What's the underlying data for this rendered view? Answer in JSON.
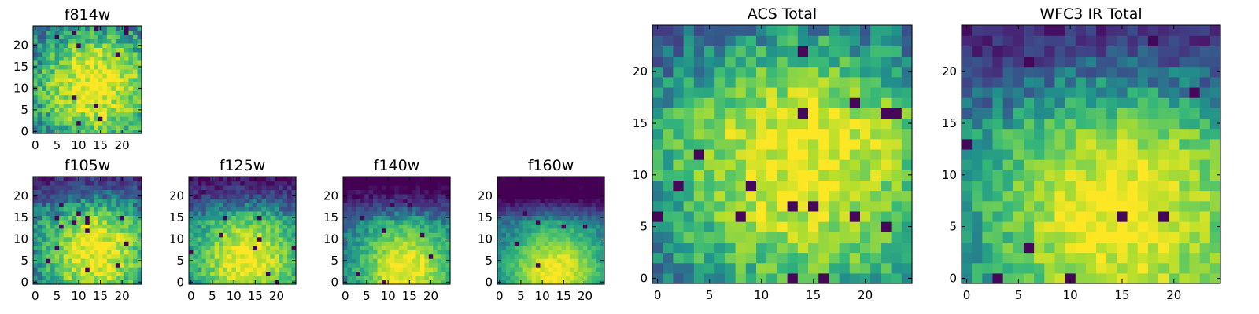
{
  "chart_data": [
    {
      "type": "heatmap",
      "title": "f814w",
      "grid": [
        25,
        25
      ],
      "xlim": [
        0,
        24
      ],
      "ylim": [
        0,
        24
      ],
      "xticks": [
        0,
        5,
        10,
        15,
        20
      ],
      "yticks": [
        0,
        5,
        10,
        15,
        20
      ],
      "colormap": "viridis",
      "center": [
        14,
        11
      ],
      "spread": 10,
      "seed": 11,
      "noise": 0.35,
      "topDark": 0.05
    },
    {
      "type": "heatmap",
      "title": "f105w",
      "grid": [
        25,
        25
      ],
      "xlim": [
        0,
        24
      ],
      "ylim": [
        0,
        24
      ],
      "xticks": [
        0,
        5,
        10,
        15,
        20
      ],
      "yticks": [
        0,
        5,
        10,
        15,
        20
      ],
      "colormap": "viridis",
      "center": [
        14,
        7
      ],
      "spread": 9,
      "seed": 23,
      "noise": 0.3,
      "topDark": 0.25
    },
    {
      "type": "heatmap",
      "title": "f125w",
      "grid": [
        25,
        25
      ],
      "xlim": [
        0,
        24
      ],
      "ylim": [
        0,
        24
      ],
      "xticks": [
        0,
        5,
        10,
        15,
        20
      ],
      "yticks": [
        0,
        5,
        10,
        15,
        20
      ],
      "colormap": "viridis",
      "center": [
        13,
        5
      ],
      "spread": 9,
      "seed": 37,
      "noise": 0.25,
      "topDark": 0.35
    },
    {
      "type": "heatmap",
      "title": "f140w",
      "grid": [
        25,
        25
      ],
      "xlim": [
        0,
        24
      ],
      "ylim": [
        0,
        24
      ],
      "xticks": [
        0,
        5,
        10,
        15,
        20
      ],
      "yticks": [
        0,
        5,
        10,
        15,
        20
      ],
      "colormap": "viridis",
      "center": [
        14,
        3
      ],
      "spread": 8,
      "seed": 41,
      "noise": 0.2,
      "topDark": 0.5
    },
    {
      "type": "heatmap",
      "title": "f160w",
      "grid": [
        25,
        25
      ],
      "xlim": [
        0,
        24
      ],
      "ylim": [
        0,
        24
      ],
      "xticks": [
        0,
        5,
        10,
        15,
        20
      ],
      "yticks": [
        0,
        5,
        10,
        15,
        20
      ],
      "colormap": "viridis",
      "center": [
        13,
        2
      ],
      "spread": 8,
      "seed": 53,
      "noise": 0.15,
      "topDark": 0.7
    },
    {
      "type": "heatmap",
      "title": "ACS Total",
      "grid": [
        25,
        25
      ],
      "xlim": [
        0,
        24
      ],
      "ylim": [
        0,
        24
      ],
      "xticks": [
        0,
        5,
        10,
        15,
        20
      ],
      "yticks": [
        0,
        5,
        10,
        15,
        20
      ],
      "colormap": "viridis",
      "center": [
        14,
        12
      ],
      "spread": 10,
      "seed": 67,
      "noise": 0.3,
      "topDark": 0.15
    },
    {
      "type": "heatmap",
      "title": "WFC3 IR Total",
      "grid": [
        25,
        25
      ],
      "xlim": [
        0,
        24
      ],
      "ylim": [
        0,
        24
      ],
      "xticks": [
        0,
        5,
        10,
        15,
        20
      ],
      "yticks": [
        0,
        5,
        10,
        15,
        20
      ],
      "colormap": "viridis",
      "center": [
        15,
        6
      ],
      "spread": 10,
      "seed": 79,
      "noise": 0.25,
      "topDark": 0.3
    }
  ]
}
